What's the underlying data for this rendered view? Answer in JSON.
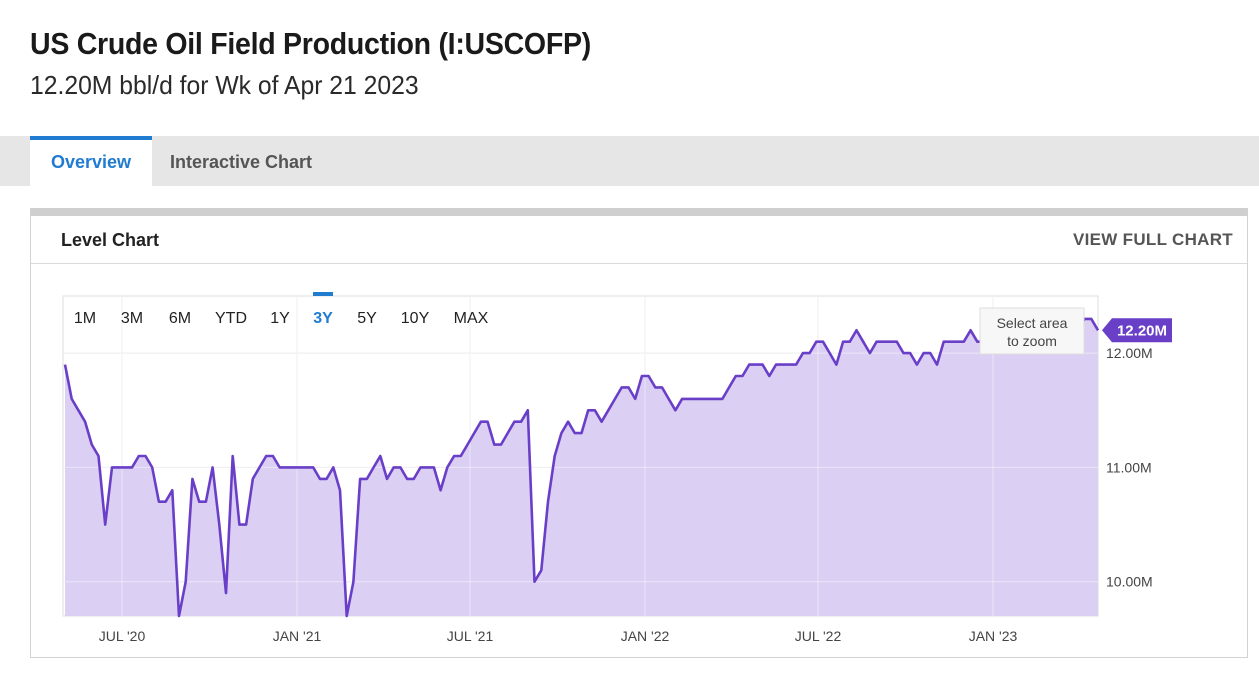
{
  "header": {
    "title": "US Crude Oil Field Production (I:USCOFP)",
    "subtitle": "12.20M bbl/d for Wk of Apr 21 2023"
  },
  "tabs": [
    {
      "label": "Overview",
      "active": true
    },
    {
      "label": "Interactive Chart",
      "active": false
    }
  ],
  "card": {
    "title": "Level Chart",
    "full_chart_label": "VIEW FULL CHART"
  },
  "range_buttons": [
    "1M",
    "3M",
    "6M",
    "YTD",
    "1Y",
    "3Y",
    "5Y",
    "10Y",
    "MAX"
  ],
  "range_selected": "3Y",
  "zoom_hint": [
    "Select area",
    "to zoom"
  ],
  "colors": {
    "line": "#6a3fc8",
    "fill": "#d9cdf2",
    "accent": "#1f7cd1",
    "label_bg": "#6a3fc8"
  },
  "chart_data": {
    "type": "area",
    "series": [
      {
        "values": [
          11.9,
          11.6,
          11.5,
          11.4,
          11.2,
          11.1,
          10.5,
          11.0,
          11.0,
          11.0,
          11.0,
          11.1,
          11.1,
          11.0,
          10.7,
          10.7,
          10.8,
          9.7,
          10.0,
          10.9,
          10.7,
          10.7,
          11.0,
          10.5,
          9.9,
          11.1,
          10.5,
          10.5,
          10.9,
          11.0,
          11.1,
          11.1,
          11.0,
          11.0,
          11.0,
          11.0,
          11.0,
          11.0,
          10.9,
          10.9,
          11.0,
          10.8,
          9.7,
          10.0,
          10.9,
          10.9,
          11.0,
          11.1,
          10.9,
          11.0,
          11.0,
          10.9,
          10.9,
          11.0,
          11.0,
          11.0,
          10.8,
          11.0,
          11.1,
          11.1,
          11.2,
          11.3,
          11.4,
          11.4,
          11.2,
          11.2,
          11.3,
          11.4,
          11.4,
          11.5,
          10.0,
          10.1,
          10.7,
          11.1,
          11.3,
          11.4,
          11.3,
          11.3,
          11.5,
          11.5,
          11.4,
          11.5,
          11.6,
          11.7,
          11.7,
          11.6,
          11.8,
          11.8,
          11.7,
          11.7,
          11.6,
          11.5,
          11.6,
          11.6,
          11.6,
          11.6,
          11.6,
          11.6,
          11.6,
          11.7,
          11.8,
          11.8,
          11.9,
          11.9,
          11.9,
          11.8,
          11.9,
          11.9,
          11.9,
          11.9,
          12.0,
          12.0,
          12.1,
          12.1,
          12.0,
          11.9,
          12.1,
          12.1,
          12.2,
          12.1,
          12.0,
          12.1,
          12.1,
          12.1,
          12.1,
          12.0,
          12.0,
          11.9,
          12.0,
          12.0,
          11.9,
          12.1,
          12.1,
          12.1,
          12.1,
          12.2,
          12.1,
          12.1,
          12.0,
          12.1,
          12.2,
          12.2,
          12.2,
          12.3,
          12.3,
          12.3,
          12.3,
          12.2,
          12.2,
          12.3,
          12.2,
          12.2,
          12.3,
          12.3,
          12.2
        ]
      }
    ],
    "x_tick_labels": [
      "JUL '20",
      "JAN '21",
      "JUL '21",
      "JAN '22",
      "JUL '22",
      "JAN '23"
    ],
    "y_tick_labels": [
      "10.00M",
      "11.00M",
      "12.00M"
    ],
    "y_ticks": [
      10,
      11,
      12
    ],
    "ylim": [
      9.7,
      12.5
    ],
    "last_value_label": "12.20M",
    "grid": true
  }
}
